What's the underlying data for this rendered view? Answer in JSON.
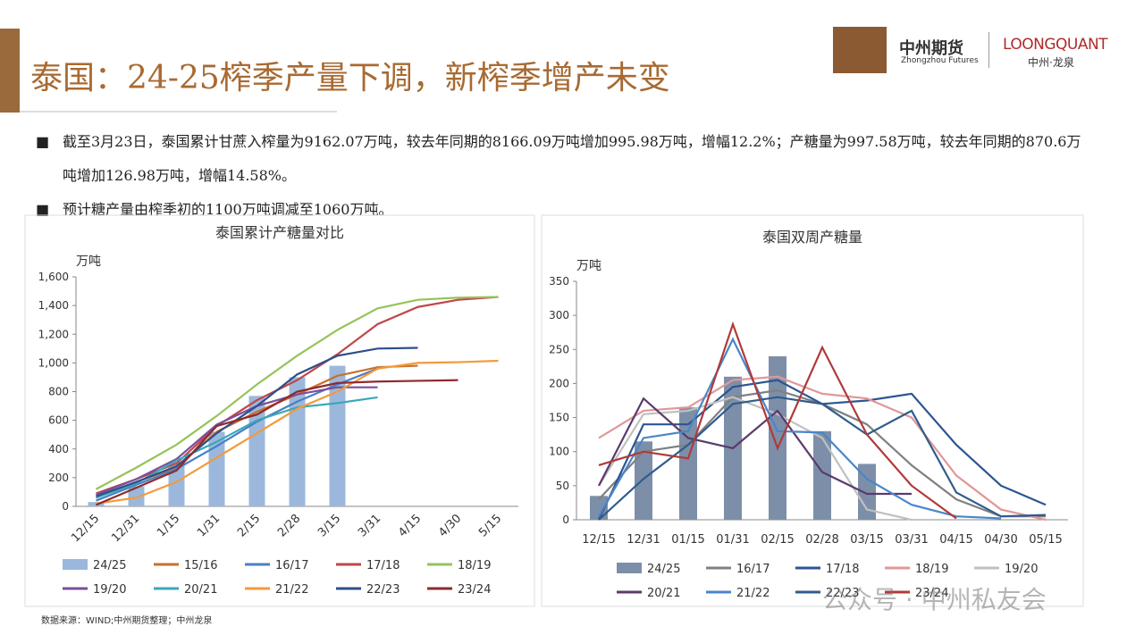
{
  "header": {
    "title": "泰国：24-25榨季产量下调，新榨季增产未变",
    "logo_cn": "中州期货",
    "logo_en": "Zhongzhou Futures",
    "brand": "LOONGQUANT",
    "brand_sub": "中州·龙泉"
  },
  "bullets": [
    "截至3月23日，泰国累计甘蔗入榨量为9162.07万吨，较去年同期的8166.09万吨增加995.98万吨，增幅12.2%；产糖量为997.58万吨，较去年同期的870.6万吨增加126.98万吨，增幅14.58%。",
    "预计糖产量由榨季初的1100万吨调减至1060万吨。"
  ],
  "source": "数据来源：WIND;中州期货整理；中州龙泉",
  "watermark": "公众号 · 中州私友会",
  "chart_data": [
    {
      "type": "combo",
      "title": "泰国累计产糖量对比",
      "yunit": "万吨",
      "categories": [
        "12/15",
        "12/31",
        "1/15",
        "1/31",
        "2/15",
        "2/28",
        "3/15",
        "3/31",
        "4/15",
        "4/30",
        "5/15"
      ],
      "ylim": [
        0,
        1600
      ],
      "yticks": [
        0,
        200,
        400,
        600,
        800,
        {
          "value": 1000,
          "label": "1,000"
        },
        {
          "value": 1200,
          "label": "1,200"
        },
        {
          "value": 1400,
          "label": "1,400"
        },
        {
          "value": 1600,
          "label": "1,600"
        }
      ],
      "series": [
        {
          "name": "24/25",
          "type": "bar",
          "color": "#9bb8dc",
          "values": [
            30,
            140,
            310,
            520,
            770,
            900,
            980,
            null,
            null,
            null,
            null
          ]
        },
        {
          "name": "15/16",
          "type": "line",
          "color": "#c8702e",
          "values": [
            60,
            170,
            270,
            520,
            660,
            780,
            910,
            970,
            980,
            null,
            null
          ]
        },
        {
          "name": "16/17",
          "type": "line",
          "color": "#4a7fc4",
          "values": [
            40,
            150,
            260,
            420,
            590,
            730,
            850,
            960,
            null,
            null,
            null
          ]
        },
        {
          "name": "17/18",
          "type": "line",
          "color": "#c0474a",
          "values": [
            90,
            190,
            300,
            560,
            740,
            880,
            1060,
            1270,
            1390,
            1440,
            1460
          ]
        },
        {
          "name": "18/19",
          "type": "line",
          "color": "#96c35a",
          "values": [
            120,
            270,
            430,
            630,
            850,
            1050,
            1230,
            1380,
            1440,
            1455,
            1460
          ]
        },
        {
          "name": "19/20",
          "type": "line",
          "color": "#7b4e9c",
          "values": [
            80,
            190,
            330,
            570,
            700,
            780,
            830,
            830,
            null,
            null,
            null
          ]
        },
        {
          "name": "20/21",
          "type": "line",
          "color": "#3aa8b8",
          "values": [
            60,
            160,
            320,
            450,
            600,
            690,
            720,
            760,
            null,
            null,
            null
          ]
        },
        {
          "name": "21/22",
          "type": "line",
          "color": "#f39a3c",
          "values": [
            20,
            60,
            170,
            340,
            510,
            680,
            800,
            960,
            1000,
            1005,
            1015
          ]
        },
        {
          "name": "22/23",
          "type": "line",
          "color": "#2e4f8c",
          "values": [
            70,
            170,
            280,
            510,
            700,
            920,
            1050,
            1100,
            1105,
            null,
            null
          ]
        },
        {
          "name": "23/24",
          "type": "line",
          "color": "#8e2a2e",
          "values": [
            10,
            130,
            250,
            560,
            640,
            800,
            860,
            870,
            875,
            880,
            null
          ]
        }
      ]
    },
    {
      "type": "combo",
      "title": "泰国双周产糖量",
      "yunit": "万吨",
      "categories": [
        "12/15",
        "12/31",
        "01/15",
        "01/31",
        "02/15",
        "02/28",
        "03/15",
        "03/31",
        "04/15",
        "04/30",
        "05/15"
      ],
      "ylim": [
        0,
        350
      ],
      "yticks": [
        0,
        50,
        100,
        150,
        200,
        250,
        300,
        350
      ],
      "series": [
        {
          "name": "24/25",
          "type": "bar",
          "color": "#7d8fa8",
          "values": [
            35,
            115,
            165,
            210,
            240,
            130,
            82,
            null,
            null,
            null,
            null
          ]
        },
        {
          "name": "16/17",
          "type": "line",
          "color": "#808080",
          "values": [
            30,
            100,
            110,
            180,
            190,
            170,
            140,
            80,
            30,
            5,
            5
          ]
        },
        {
          "name": "17/18",
          "type": "line",
          "color": "#2c5591",
          "values": [
            0,
            140,
            140,
            195,
            205,
            170,
            175,
            185,
            110,
            50,
            22
          ]
        },
        {
          "name": "18/19",
          "type": "line",
          "color": "#e09898",
          "values": [
            120,
            160,
            165,
            205,
            210,
            185,
            178,
            150,
            65,
            15,
            0
          ]
        },
        {
          "name": "19/20",
          "type": "line",
          "color": "#c0c0c0",
          "values": [
            50,
            155,
            160,
            180,
            155,
            120,
            15,
            0,
            null,
            null,
            null
          ]
        },
        {
          "name": "20/21",
          "type": "line",
          "color": "#5a3a6e",
          "values": [
            50,
            178,
            120,
            105,
            160,
            70,
            38,
            38,
            null,
            null,
            null
          ]
        },
        {
          "name": "21/22",
          "type": "line",
          "color": "#4a86c8",
          "values": [
            5,
            120,
            130,
            265,
            130,
            128,
            60,
            22,
            5,
            2,
            null
          ]
        },
        {
          "name": "22/23",
          "type": "line",
          "color": "#2f5c8c",
          "values": [
            0,
            60,
            110,
            170,
            180,
            170,
            125,
            160,
            40,
            5,
            7
          ]
        },
        {
          "name": "23/24",
          "type": "line",
          "color": "#b03a3a",
          "values": [
            80,
            100,
            90,
            287,
            105,
            253,
            125,
            50,
            2,
            null,
            null
          ]
        }
      ]
    }
  ]
}
